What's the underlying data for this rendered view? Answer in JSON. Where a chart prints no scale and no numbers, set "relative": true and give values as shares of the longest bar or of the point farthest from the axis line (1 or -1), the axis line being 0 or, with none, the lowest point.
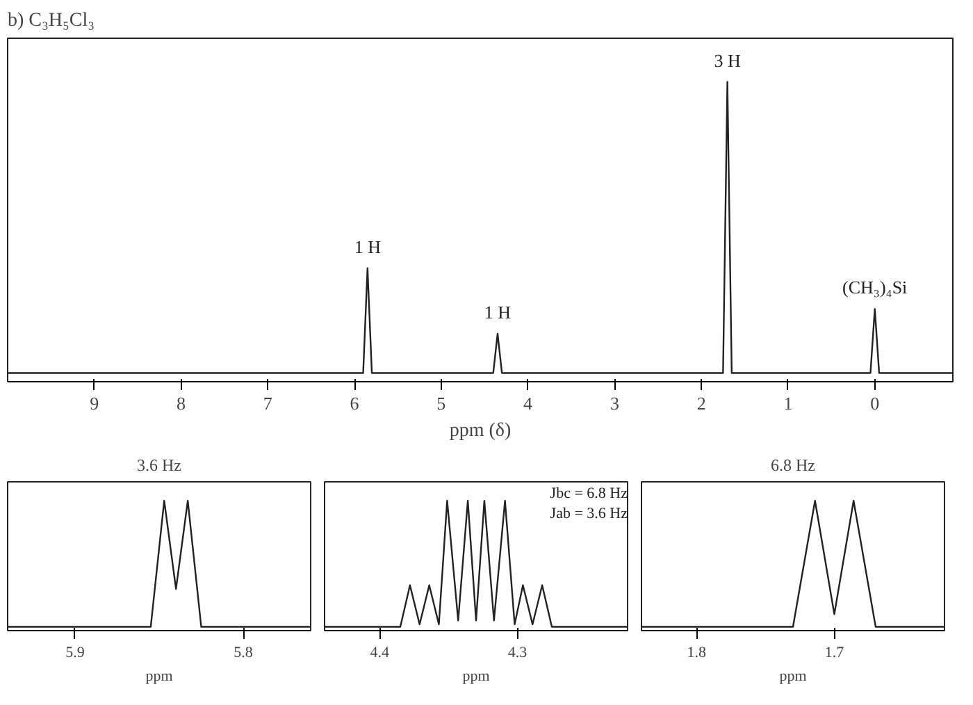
{
  "chart_data": [
    {
      "type": "line",
      "title": "b) C₃H₅Cl₃",
      "xlabel": "ppm (δ)",
      "relative": true,
      "xlim": [
        10,
        -0.9
      ],
      "xticks": [
        9,
        8,
        7,
        6,
        5,
        4,
        3,
        2,
        1,
        0
      ],
      "series": [
        {
          "color": "#222222",
          "x": [
            10,
            5.9,
            5.85,
            5.8,
            4.4,
            4.35,
            4.3,
            1.75,
            1.7,
            1.65,
            0.05,
            0,
            -0.05,
            -0.9
          ],
          "values": [
            0,
            0,
            0.36,
            0,
            0,
            0.135,
            0,
            0,
            1,
            0,
            0,
            0.22,
            0,
            0
          ]
        }
      ],
      "annotations": [
        {
          "text": "1 H",
          "x": 5.85,
          "y": 0.36
        },
        {
          "text": "1 H",
          "x": 4.35,
          "y": 0.135
        },
        {
          "text": "3 H",
          "x": 1.7,
          "y": 1
        },
        {
          "text": "(CH₃)₄Si",
          "x": 0,
          "y": 0.22
        }
      ]
    },
    {
      "type": "line",
      "title": "3.6 Hz",
      "xlabel": "ppm",
      "relative": true,
      "xlim": [
        5.94,
        5.76
      ],
      "xticks": [
        5.9,
        5.8
      ],
      "series": [
        {
          "color": "#222222",
          "x": [
            5.94,
            5.855,
            5.847,
            5.84,
            5.833,
            5.825,
            5.76
          ],
          "values": [
            0,
            0,
            1,
            0.3,
            1,
            0,
            0
          ]
        }
      ]
    },
    {
      "type": "line",
      "xlabel": "ppm",
      "relative": true,
      "xlim": [
        4.44,
        4.22
      ],
      "xticks": [
        4.4,
        4.3
      ],
      "series": [
        {
          "color": "#222222",
          "x": [
            4.44,
            4.385,
            4.378,
            4.371,
            4.364,
            4.357,
            4.351,
            4.343,
            4.336,
            4.33,
            4.324,
            4.317,
            4.309,
            4.302,
            4.296,
            4.289,
            4.282,
            4.275,
            4.22
          ],
          "values": [
            0,
            0,
            0.33,
            0.02,
            0.33,
            0.02,
            1,
            0.05,
            1,
            0.05,
            1,
            0.05,
            1,
            0.02,
            0.33,
            0.02,
            0.33,
            0,
            0
          ]
        }
      ],
      "annotations": [
        "Jbc = 6.8 Hz",
        "Jab = 3.6 Hz"
      ]
    },
    {
      "type": "line",
      "title": "6.8 Hz",
      "xlabel": "ppm",
      "relative": true,
      "xlim": [
        1.84,
        1.62
      ],
      "xticks": [
        1.8,
        1.7
      ],
      "series": [
        {
          "color": "#222222",
          "x": [
            1.84,
            1.73,
            1.714,
            1.7,
            1.686,
            1.67,
            1.62
          ],
          "values": [
            0,
            0,
            1,
            0.1,
            1,
            0,
            0
          ]
        }
      ]
    }
  ]
}
